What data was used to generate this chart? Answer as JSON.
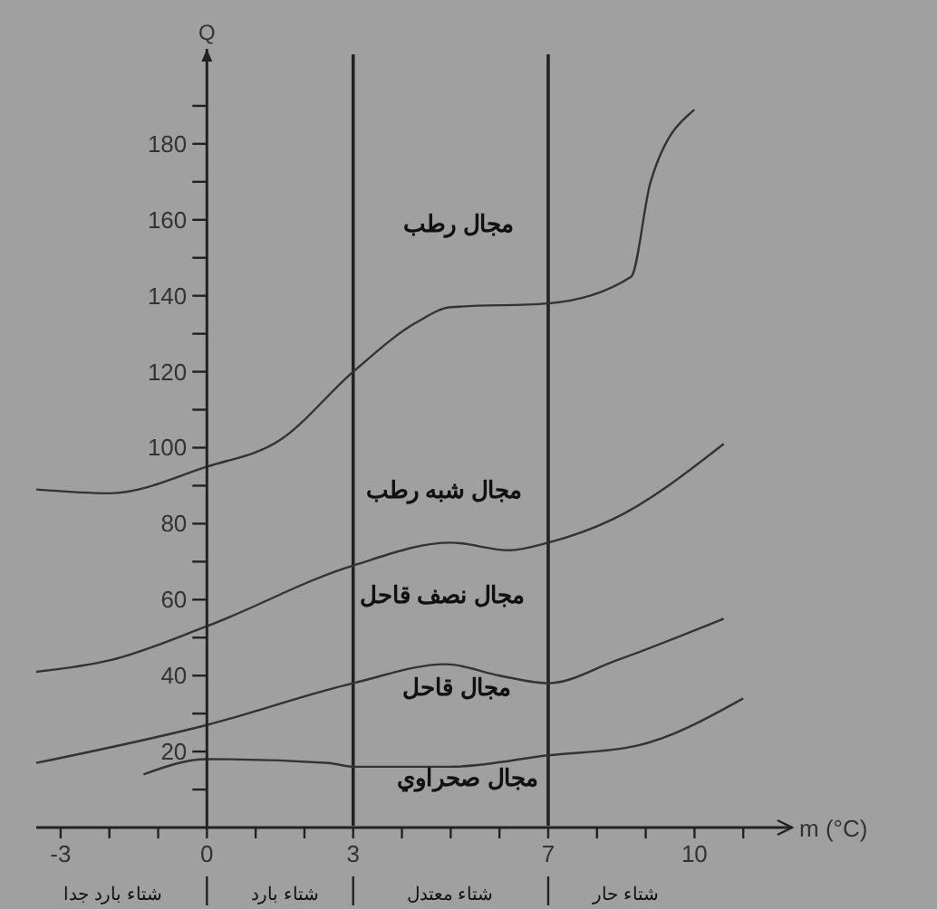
{
  "chart_data": {
    "type": "line",
    "xlabel": "m (°C)",
    "ylabel": "Q",
    "xlim": [
      -3.5,
      12
    ],
    "ylim": [
      0,
      205
    ],
    "xticks": [
      {
        "value": -3,
        "label": "-3"
      },
      {
        "value": -2,
        "label": null
      },
      {
        "value": -1,
        "label": null
      },
      {
        "value": 0,
        "label": "0"
      },
      {
        "value": 1,
        "label": null
      },
      {
        "value": 2,
        "label": null
      },
      {
        "value": 3,
        "label": "3"
      },
      {
        "value": 4,
        "label": null
      },
      {
        "value": 5,
        "label": null
      },
      {
        "value": 6,
        "label": null
      },
      {
        "value": 7,
        "label": "7"
      },
      {
        "value": 8,
        "label": null
      },
      {
        "value": 9,
        "label": null
      },
      {
        "value": 10,
        "label": "10"
      },
      {
        "value": 11,
        "label": null
      }
    ],
    "yticks": [
      {
        "value": 10,
        "label": null
      },
      20,
      {
        "value": 30,
        "label": null
      },
      40,
      {
        "value": 50,
        "label": null
      },
      60,
      {
        "value": 70,
        "label": null
      },
      80,
      {
        "value": 90,
        "label": null
      },
      100,
      {
        "value": 110,
        "label": null
      },
      120,
      {
        "value": 130,
        "label": null
      },
      140,
      {
        "value": 150,
        "label": null
      },
      160,
      {
        "value": 170,
        "label": null
      },
      180,
      {
        "value": 190,
        "label": null
      }
    ],
    "marker": "none",
    "line_style": "solid",
    "series": [
      {
        "color": "#333333",
        "x": [
          -3.5,
          -2,
          0,
          1.5,
          3,
          4.3,
          5,
          7,
          8.7,
          9.1,
          10
        ],
        "values": [
          89,
          88,
          95,
          102,
          120,
          133,
          137,
          138,
          145,
          170,
          189
        ]
      },
      {
        "color": "#333333",
        "x": [
          -3.5,
          -2,
          0,
          3,
          5,
          6.2,
          7,
          8.3,
          10.6
        ],
        "values": [
          41,
          44,
          53,
          69,
          75,
          73,
          75,
          81,
          101
        ]
      },
      {
        "color": "#333333",
        "x": [
          -3.5,
          0,
          3,
          4.9,
          6,
          7,
          8.4,
          10.6
        ],
        "values": [
          17,
          27,
          38,
          43,
          40,
          38,
          44,
          55
        ]
      },
      {
        "color": "#333333",
        "x": [
          -1.3,
          0,
          2.5,
          3,
          5,
          7,
          8.8,
          11
        ],
        "values": [
          14,
          18,
          17,
          16,
          16,
          19,
          21.5,
          34
        ]
      }
    ],
    "ref_lines": [
      {
        "axis": "x",
        "value": 3,
        "color": "#222222"
      },
      {
        "axis": "x",
        "value": 7,
        "color": "#222222"
      }
    ],
    "annotations": [
      "مجال رطب",
      "مجال شبه رطب",
      "مجال نصف قاحل",
      "مجال قاحل",
      "مجال صحراوي",
      "شتاء بارد جدا",
      "شتاء بارد",
      "شتاء معتدل",
      "شتاء حار"
    ]
  }
}
